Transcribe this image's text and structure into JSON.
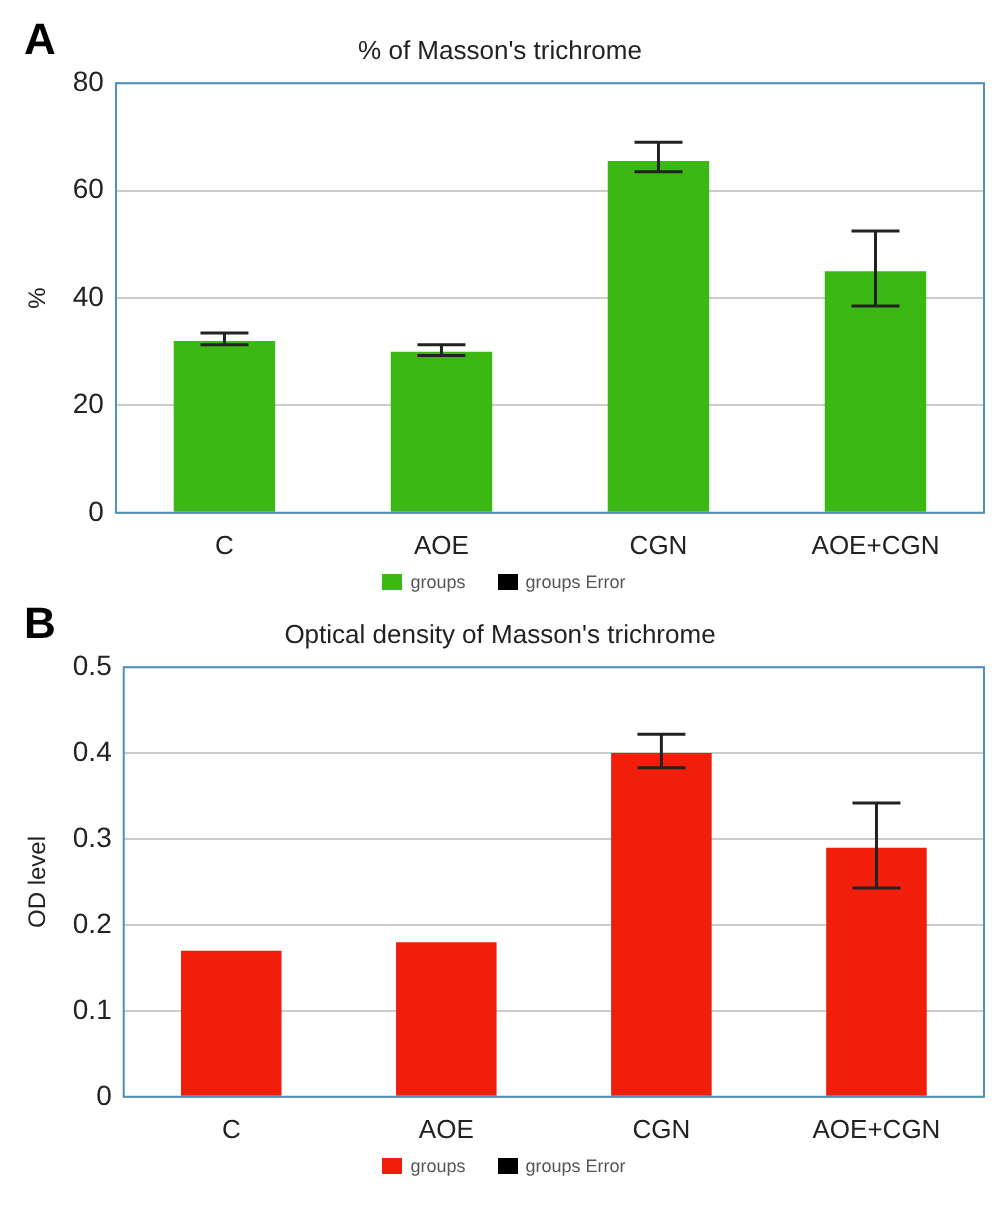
{
  "chart_data": [
    {
      "type": "bar",
      "title": "% of Masson's trichrome",
      "ylabel": "%",
      "annotations": [
        "A",
        "groups Error"
      ],
      "categories": [
        "C",
        "AOE",
        "CGN",
        "AOE+CGN"
      ],
      "series": [
        {
          "name": "groups",
          "color": "#3cb814",
          "values": [
            32,
            30,
            65.5,
            45
          ],
          "errors": [
            [
              31.3,
              33.5
            ],
            [
              29.3,
              31.3
            ],
            [
              63.5,
              69
            ],
            [
              38.5,
              52.5
            ]
          ]
        }
      ],
      "ylim": [
        0,
        80
      ],
      "yticks": [
        0,
        20,
        40,
        60,
        80
      ],
      "grid": "y",
      "legend": "bottom"
    },
    {
      "type": "bar",
      "title": "Optical density of Masson's trichrome",
      "ylabel": "OD level",
      "annotations": [
        "B",
        "groups Error"
      ],
      "categories": [
        "C",
        "AOE",
        "CGN",
        "AOE+CGN"
      ],
      "series": [
        {
          "name": "groups",
          "color": "#f01e0a",
          "values": [
            0.17,
            0.18,
            0.4,
            0.29
          ],
          "errors": [
            null,
            null,
            [
              0.383,
              0.422
            ],
            [
              0.243,
              0.342
            ]
          ]
        }
      ],
      "ylim": [
        0,
        0.5
      ],
      "yticks": [
        0,
        0.1,
        0.2,
        0.3,
        0.4,
        0.5
      ],
      "grid": "y",
      "legend": "bottom"
    }
  ]
}
